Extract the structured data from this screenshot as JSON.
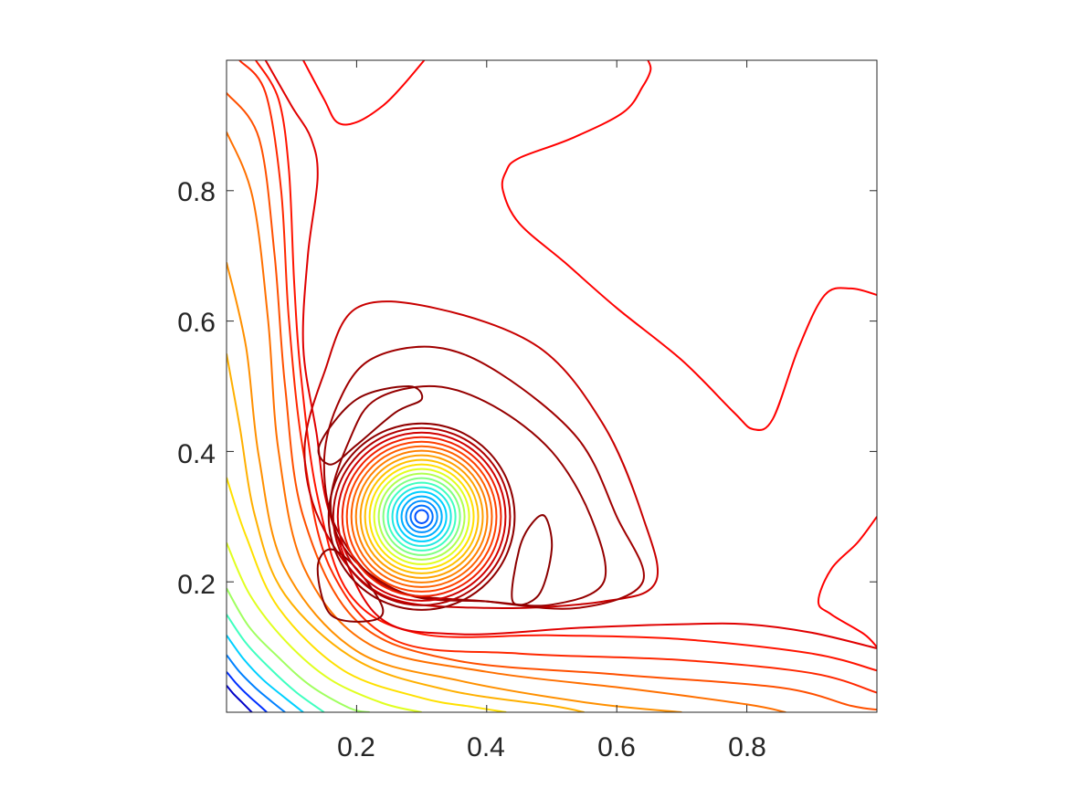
{
  "chart_data": {
    "type": "contour",
    "title": "",
    "xlabel": "",
    "ylabel": "",
    "xlim": [
      0,
      1
    ],
    "ylim": [
      0,
      1
    ],
    "xticks": [
      0.2,
      0.4,
      0.6,
      0.8
    ],
    "yticks": [
      0.2,
      0.4,
      0.6,
      0.8
    ],
    "xtick_labels": [
      "0.2",
      "0.4",
      "0.6",
      "0.8"
    ],
    "ytick_labels": [
      "0.2",
      "0.4",
      "0.6",
      "0.8"
    ],
    "colormap": "jet",
    "grid": false,
    "legend": "none",
    "box": true,
    "features": {
      "central_minimum": {
        "x": 0.3,
        "y": 0.3
      },
      "corner_low": {
        "x": 0.0,
        "y": 0.0
      }
    },
    "contours": [
      {
        "level": 1,
        "color": "#0000c8",
        "shape": "corner",
        "points": [
          [
            0.0,
            0.041
          ],
          [
            0.01,
            0.029
          ],
          [
            0.023,
            0.016
          ],
          [
            0.036,
            0.003
          ],
          [
            0.039,
            0.0
          ]
        ]
      },
      {
        "level": 2,
        "color": "#0030ff",
        "shape": "corner",
        "points": [
          [
            0.0,
            0.062
          ],
          [
            0.016,
            0.043
          ],
          [
            0.033,
            0.026
          ],
          [
            0.051,
            0.01
          ],
          [
            0.062,
            0.0
          ]
        ]
      },
      {
        "level": 3,
        "color": "#0080ff",
        "shape": "corner",
        "points": [
          [
            0.0,
            0.088
          ],
          [
            0.02,
            0.062
          ],
          [
            0.045,
            0.037
          ],
          [
            0.07,
            0.016
          ],
          [
            0.09,
            0.0
          ]
        ]
      },
      {
        "level": 4,
        "color": "#00d0ff",
        "shape": "corner",
        "points": [
          [
            0.0,
            0.118
          ],
          [
            0.026,
            0.082
          ],
          [
            0.056,
            0.05
          ],
          [
            0.09,
            0.022
          ],
          [
            0.118,
            0.0
          ]
        ]
      },
      {
        "level": 5,
        "color": "#40ffc0",
        "shape": "corner",
        "points": [
          [
            0.0,
            0.15
          ],
          [
            0.03,
            0.106
          ],
          [
            0.066,
            0.068
          ],
          [
            0.108,
            0.03
          ],
          [
            0.15,
            0.0
          ]
        ]
      },
      {
        "level": 6,
        "color": "#a0ff60",
        "shape": "corner",
        "points": [
          [
            0.0,
            0.19
          ],
          [
            0.034,
            0.132
          ],
          [
            0.08,
            0.084
          ],
          [
            0.13,
            0.04
          ],
          [
            0.19,
            0.006
          ],
          [
            0.22,
            0.0
          ]
        ]
      },
      {
        "level": 7,
        "color": "#e0ff20",
        "shape": "corner",
        "points": [
          [
            0.0,
            0.26
          ],
          [
            0.036,
            0.18
          ],
          [
            0.092,
            0.108
          ],
          [
            0.16,
            0.05
          ],
          [
            0.24,
            0.014
          ],
          [
            0.3,
            0.0
          ]
        ]
      },
      {
        "level": 8,
        "color": "#ffe000",
        "shape": "corner",
        "points": [
          [
            0.0,
            0.36
          ],
          [
            0.03,
            0.27
          ],
          [
            0.08,
            0.16
          ],
          [
            0.18,
            0.064
          ],
          [
            0.3,
            0.022
          ],
          [
            0.38,
            0.008
          ],
          [
            0.43,
            0.0
          ]
        ]
      },
      {
        "level": 9,
        "color": "#ffb000",
        "shape": "corner",
        "points": [
          [
            0.0,
            0.55
          ],
          [
            0.02,
            0.44
          ],
          [
            0.044,
            0.3
          ],
          [
            0.09,
            0.18
          ],
          [
            0.2,
            0.08
          ],
          [
            0.34,
            0.034
          ],
          [
            0.5,
            0.01
          ],
          [
            0.55,
            0.0
          ]
        ]
      },
      {
        "level": 10,
        "color": "#ff9000",
        "shape": "corner",
        "points": [
          [
            0.0,
            0.69
          ],
          [
            0.03,
            0.56
          ],
          [
            0.05,
            0.39
          ],
          [
            0.09,
            0.22
          ],
          [
            0.2,
            0.094
          ],
          [
            0.36,
            0.048
          ],
          [
            0.56,
            0.014
          ],
          [
            0.7,
            0.0
          ]
        ]
      },
      {
        "level": 11,
        "color": "#ff7000",
        "shape": "corner",
        "points": [
          [
            0.0,
            0.89
          ],
          [
            0.04,
            0.79
          ],
          [
            0.064,
            0.6
          ],
          [
            0.08,
            0.4
          ],
          [
            0.12,
            0.22
          ],
          [
            0.22,
            0.104
          ],
          [
            0.4,
            0.062
          ],
          [
            0.62,
            0.036
          ],
          [
            0.8,
            0.012
          ],
          [
            0.86,
            0.0
          ]
        ]
      },
      {
        "level": 12,
        "color": "#ff5000",
        "shape": "corner",
        "points": [
          [
            0.0,
            0.95
          ],
          [
            0.05,
            0.88
          ],
          [
            0.074,
            0.7
          ],
          [
            0.09,
            0.5
          ],
          [
            0.118,
            0.3
          ],
          [
            0.2,
            0.14
          ],
          [
            0.35,
            0.08
          ],
          [
            0.6,
            0.058
          ],
          [
            0.85,
            0.038
          ],
          [
            0.96,
            0.01
          ],
          [
            1.0,
            0.004
          ]
        ]
      },
      {
        "level": 13,
        "color": "#ff2800",
        "shape": "corner",
        "points": [
          [
            0.02,
            1.0
          ],
          [
            0.06,
            0.95
          ],
          [
            0.084,
            0.8
          ],
          [
            0.096,
            0.6
          ],
          [
            0.118,
            0.4
          ],
          [
            0.16,
            0.22
          ],
          [
            0.26,
            0.11
          ],
          [
            0.45,
            0.09
          ],
          [
            0.7,
            0.08
          ],
          [
            0.9,
            0.06
          ],
          [
            1.0,
            0.03
          ]
        ]
      },
      {
        "level": 14,
        "color": "#ff1400",
        "shape": "corner",
        "points": [
          [
            0.045,
            1.0
          ],
          [
            0.08,
            0.94
          ],
          [
            0.096,
            0.83
          ],
          [
            0.104,
            0.66
          ],
          [
            0.114,
            0.52
          ],
          [
            0.14,
            0.33
          ],
          [
            0.19,
            0.18
          ],
          [
            0.3,
            0.12
          ],
          [
            0.5,
            0.118
          ],
          [
            0.7,
            0.112
          ],
          [
            0.9,
            0.09
          ],
          [
            1.0,
            0.064
          ]
        ]
      },
      {
        "level": 15,
        "color": "#e00000",
        "shape": "corner",
        "points": [
          [
            0.06,
            1.0
          ],
          [
            0.1,
            0.93
          ],
          [
            0.13,
            0.88
          ],
          [
            0.14,
            0.82
          ],
          [
            0.125,
            0.7
          ],
          [
            0.118,
            0.56
          ],
          [
            0.138,
            0.43
          ],
          [
            0.16,
            0.3
          ],
          [
            0.23,
            0.15
          ],
          [
            0.35,
            0.12
          ],
          [
            0.55,
            0.13
          ],
          [
            0.7,
            0.135
          ],
          [
            0.8,
            0.135
          ],
          [
            0.9,
            0.122
          ],
          [
            1.0,
            0.098
          ]
        ]
      },
      {
        "level": 16,
        "color": "#ff0000",
        "shape": "open",
        "points": [
          [
            0.118,
            1.0
          ],
          [
            0.15,
            0.94
          ],
          [
            0.17,
            0.905
          ],
          [
            0.2,
            0.905
          ],
          [
            0.24,
            0.93
          ],
          [
            0.27,
            0.96
          ],
          [
            0.304,
            1.0
          ]
        ]
      },
      {
        "level": 16,
        "color": "#ff0000",
        "shape": "open",
        "points": [
          [
            0.648,
            1.0
          ],
          [
            0.652,
            0.985
          ],
          [
            0.64,
            0.96
          ],
          [
            0.61,
            0.92
          ],
          [
            0.53,
            0.88
          ],
          [
            0.45,
            0.85
          ],
          [
            0.43,
            0.83
          ],
          [
            0.425,
            0.8
          ],
          [
            0.45,
            0.75
          ],
          [
            0.52,
            0.69
          ],
          [
            0.6,
            0.62
          ],
          [
            0.7,
            0.54
          ],
          [
            0.78,
            0.46
          ],
          [
            0.81,
            0.434
          ],
          [
            0.84,
            0.45
          ],
          [
            0.88,
            0.56
          ],
          [
            0.92,
            0.64
          ],
          [
            0.96,
            0.65
          ],
          [
            1.0,
            0.64
          ]
        ]
      },
      {
        "level": 16,
        "color": "#ff0000",
        "shape": "open",
        "points": [
          [
            1.0,
            0.3
          ],
          [
            0.97,
            0.26
          ],
          [
            0.93,
            0.22
          ],
          [
            0.91,
            0.17
          ],
          [
            0.93,
            0.15
          ],
          [
            0.98,
            0.12
          ],
          [
            1.0,
            0.1
          ]
        ]
      },
      {
        "level": 17,
        "color": "#c80000",
        "shape": "closed",
        "points": [
          [
            0.15,
            0.52
          ],
          [
            0.2,
            0.62
          ],
          [
            0.32,
            0.62
          ],
          [
            0.48,
            0.56
          ],
          [
            0.58,
            0.44
          ],
          [
            0.64,
            0.3
          ],
          [
            0.66,
            0.2
          ],
          [
            0.58,
            0.17
          ],
          [
            0.4,
            0.16
          ],
          [
            0.24,
            0.18
          ],
          [
            0.15,
            0.28
          ],
          [
            0.12,
            0.4
          ]
        ]
      },
      {
        "level": 18,
        "color": "#a00000",
        "shape": "closed",
        "points": [
          [
            0.17,
            0.47
          ],
          [
            0.22,
            0.54
          ],
          [
            0.32,
            0.56
          ],
          [
            0.42,
            0.52
          ],
          [
            0.54,
            0.42
          ],
          [
            0.6,
            0.3
          ],
          [
            0.64,
            0.2
          ],
          [
            0.54,
            0.16
          ],
          [
            0.4,
            0.17
          ],
          [
            0.25,
            0.19
          ],
          [
            0.17,
            0.28
          ],
          [
            0.15,
            0.38
          ]
        ]
      },
      {
        "level": 19,
        "color": "#960000",
        "shape": "closed",
        "points": [
          [
            0.19,
            0.42
          ],
          [
            0.23,
            0.48
          ],
          [
            0.32,
            0.5
          ],
          [
            0.41,
            0.47
          ],
          [
            0.5,
            0.4
          ],
          [
            0.56,
            0.3
          ],
          [
            0.58,
            0.2
          ],
          [
            0.5,
            0.165
          ],
          [
            0.4,
            0.17
          ],
          [
            0.28,
            0.18
          ],
          [
            0.19,
            0.24
          ],
          [
            0.16,
            0.32
          ]
        ]
      },
      {
        "level": 20,
        "color": "#8c0000",
        "shape": "closed",
        "points": [
          [
            0.143,
            0.41
          ],
          [
            0.2,
            0.48
          ],
          [
            0.28,
            0.5
          ],
          [
            0.3,
            0.48
          ],
          [
            0.26,
            0.46
          ],
          [
            0.2,
            0.41
          ],
          [
            0.16,
            0.38
          ]
        ]
      },
      {
        "level": 20,
        "color": "#8c0000",
        "shape": "closed",
        "points": [
          [
            0.14,
            0.22
          ],
          [
            0.16,
            0.25
          ],
          [
            0.2,
            0.22
          ],
          [
            0.24,
            0.16
          ],
          [
            0.22,
            0.14
          ],
          [
            0.16,
            0.15
          ]
        ]
      },
      {
        "level": 20,
        "color": "#8c0000",
        "shape": "closed",
        "points": [
          [
            0.45,
            0.25
          ],
          [
            0.47,
            0.29
          ],
          [
            0.49,
            0.3
          ],
          [
            0.5,
            0.25
          ],
          [
            0.48,
            0.18
          ],
          [
            0.44,
            0.17
          ]
        ]
      }
    ],
    "center_rings": {
      "x": 0.3,
      "y": 0.3,
      "radii": [
        0.01,
        0.017,
        0.024,
        0.031,
        0.038,
        0.045,
        0.052,
        0.059,
        0.066,
        0.073,
        0.08,
        0.087,
        0.094,
        0.101,
        0.108,
        0.115,
        0.122,
        0.129,
        0.136,
        0.143
      ],
      "colors": [
        "#0050ff",
        "#0070ff",
        "#0090ff",
        "#00b0ff",
        "#00d0ff",
        "#20e8e0",
        "#40ffc0",
        "#80ff80",
        "#b0ff50",
        "#e0ff20",
        "#ffe000",
        "#ffc000",
        "#ffa000",
        "#ff8000",
        "#ff6000",
        "#ff4000",
        "#f02000",
        "#d00000",
        "#b00000",
        "#900000"
      ]
    }
  }
}
